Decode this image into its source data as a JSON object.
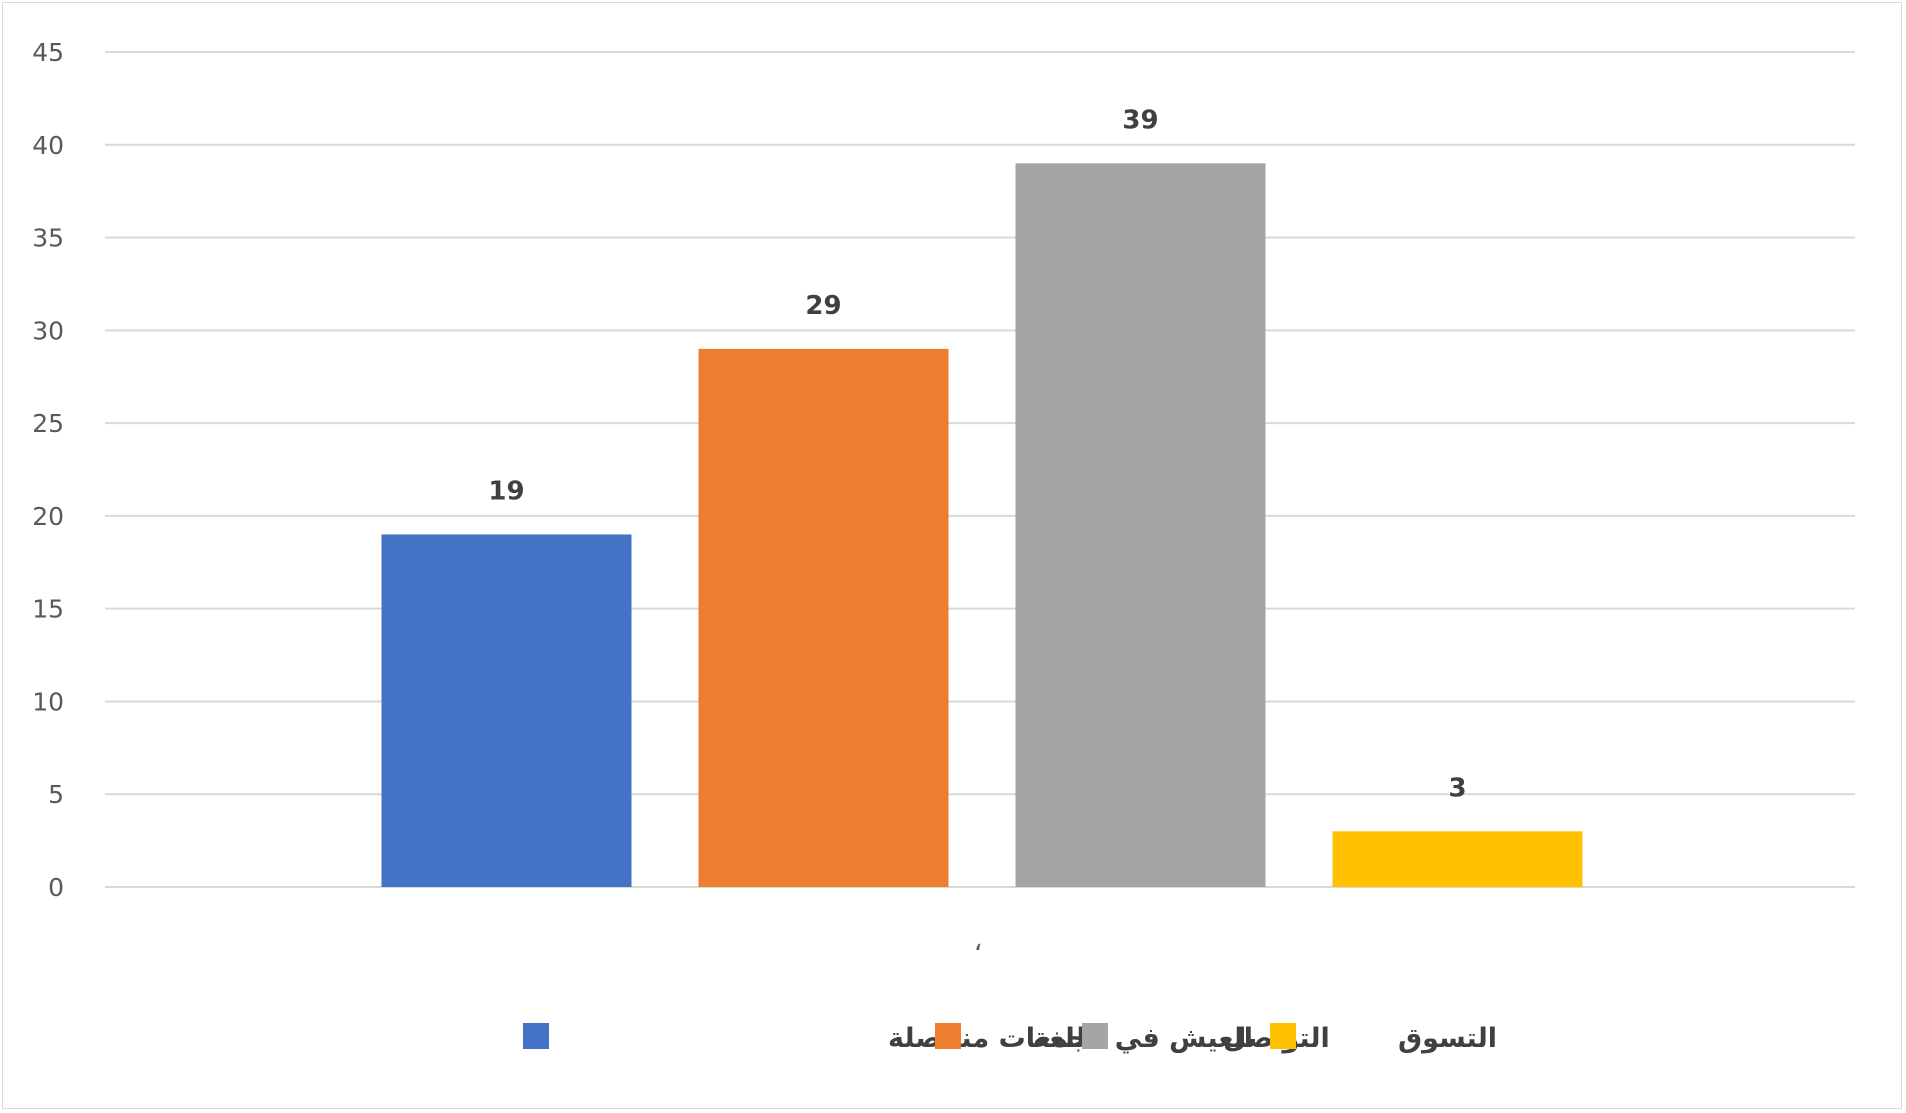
{
  "chart_data": {
    "type": "bar",
    "title": "",
    "xlabel": "",
    "ylabel": "",
    "categories": [
      "،"
    ],
    "series": [
      {
        "name": "العيش في مجمعات منفصلة",
        "values": [
          19
        ],
        "color": "#4472C4"
      },
      {
        "name": "اللغة",
        "values": [
          29
        ],
        "color": "#ED7D31"
      },
      {
        "name": "التواصل",
        "values": [
          39
        ],
        "color": "#A5A5A5"
      },
      {
        "name": "التسوق",
        "values": [
          3
        ],
        "color": "#FFC000"
      }
    ],
    "ylim": [
      0,
      45
    ],
    "yticks": [
      0,
      5,
      10,
      15,
      20,
      25,
      30,
      35,
      40,
      45
    ],
    "grid": true,
    "data_labels": true,
    "legend_position": "bottom"
  },
  "colors": {
    "gridline": "#d9d9d9",
    "axis_text": "#595959",
    "label_text": "#404040"
  }
}
